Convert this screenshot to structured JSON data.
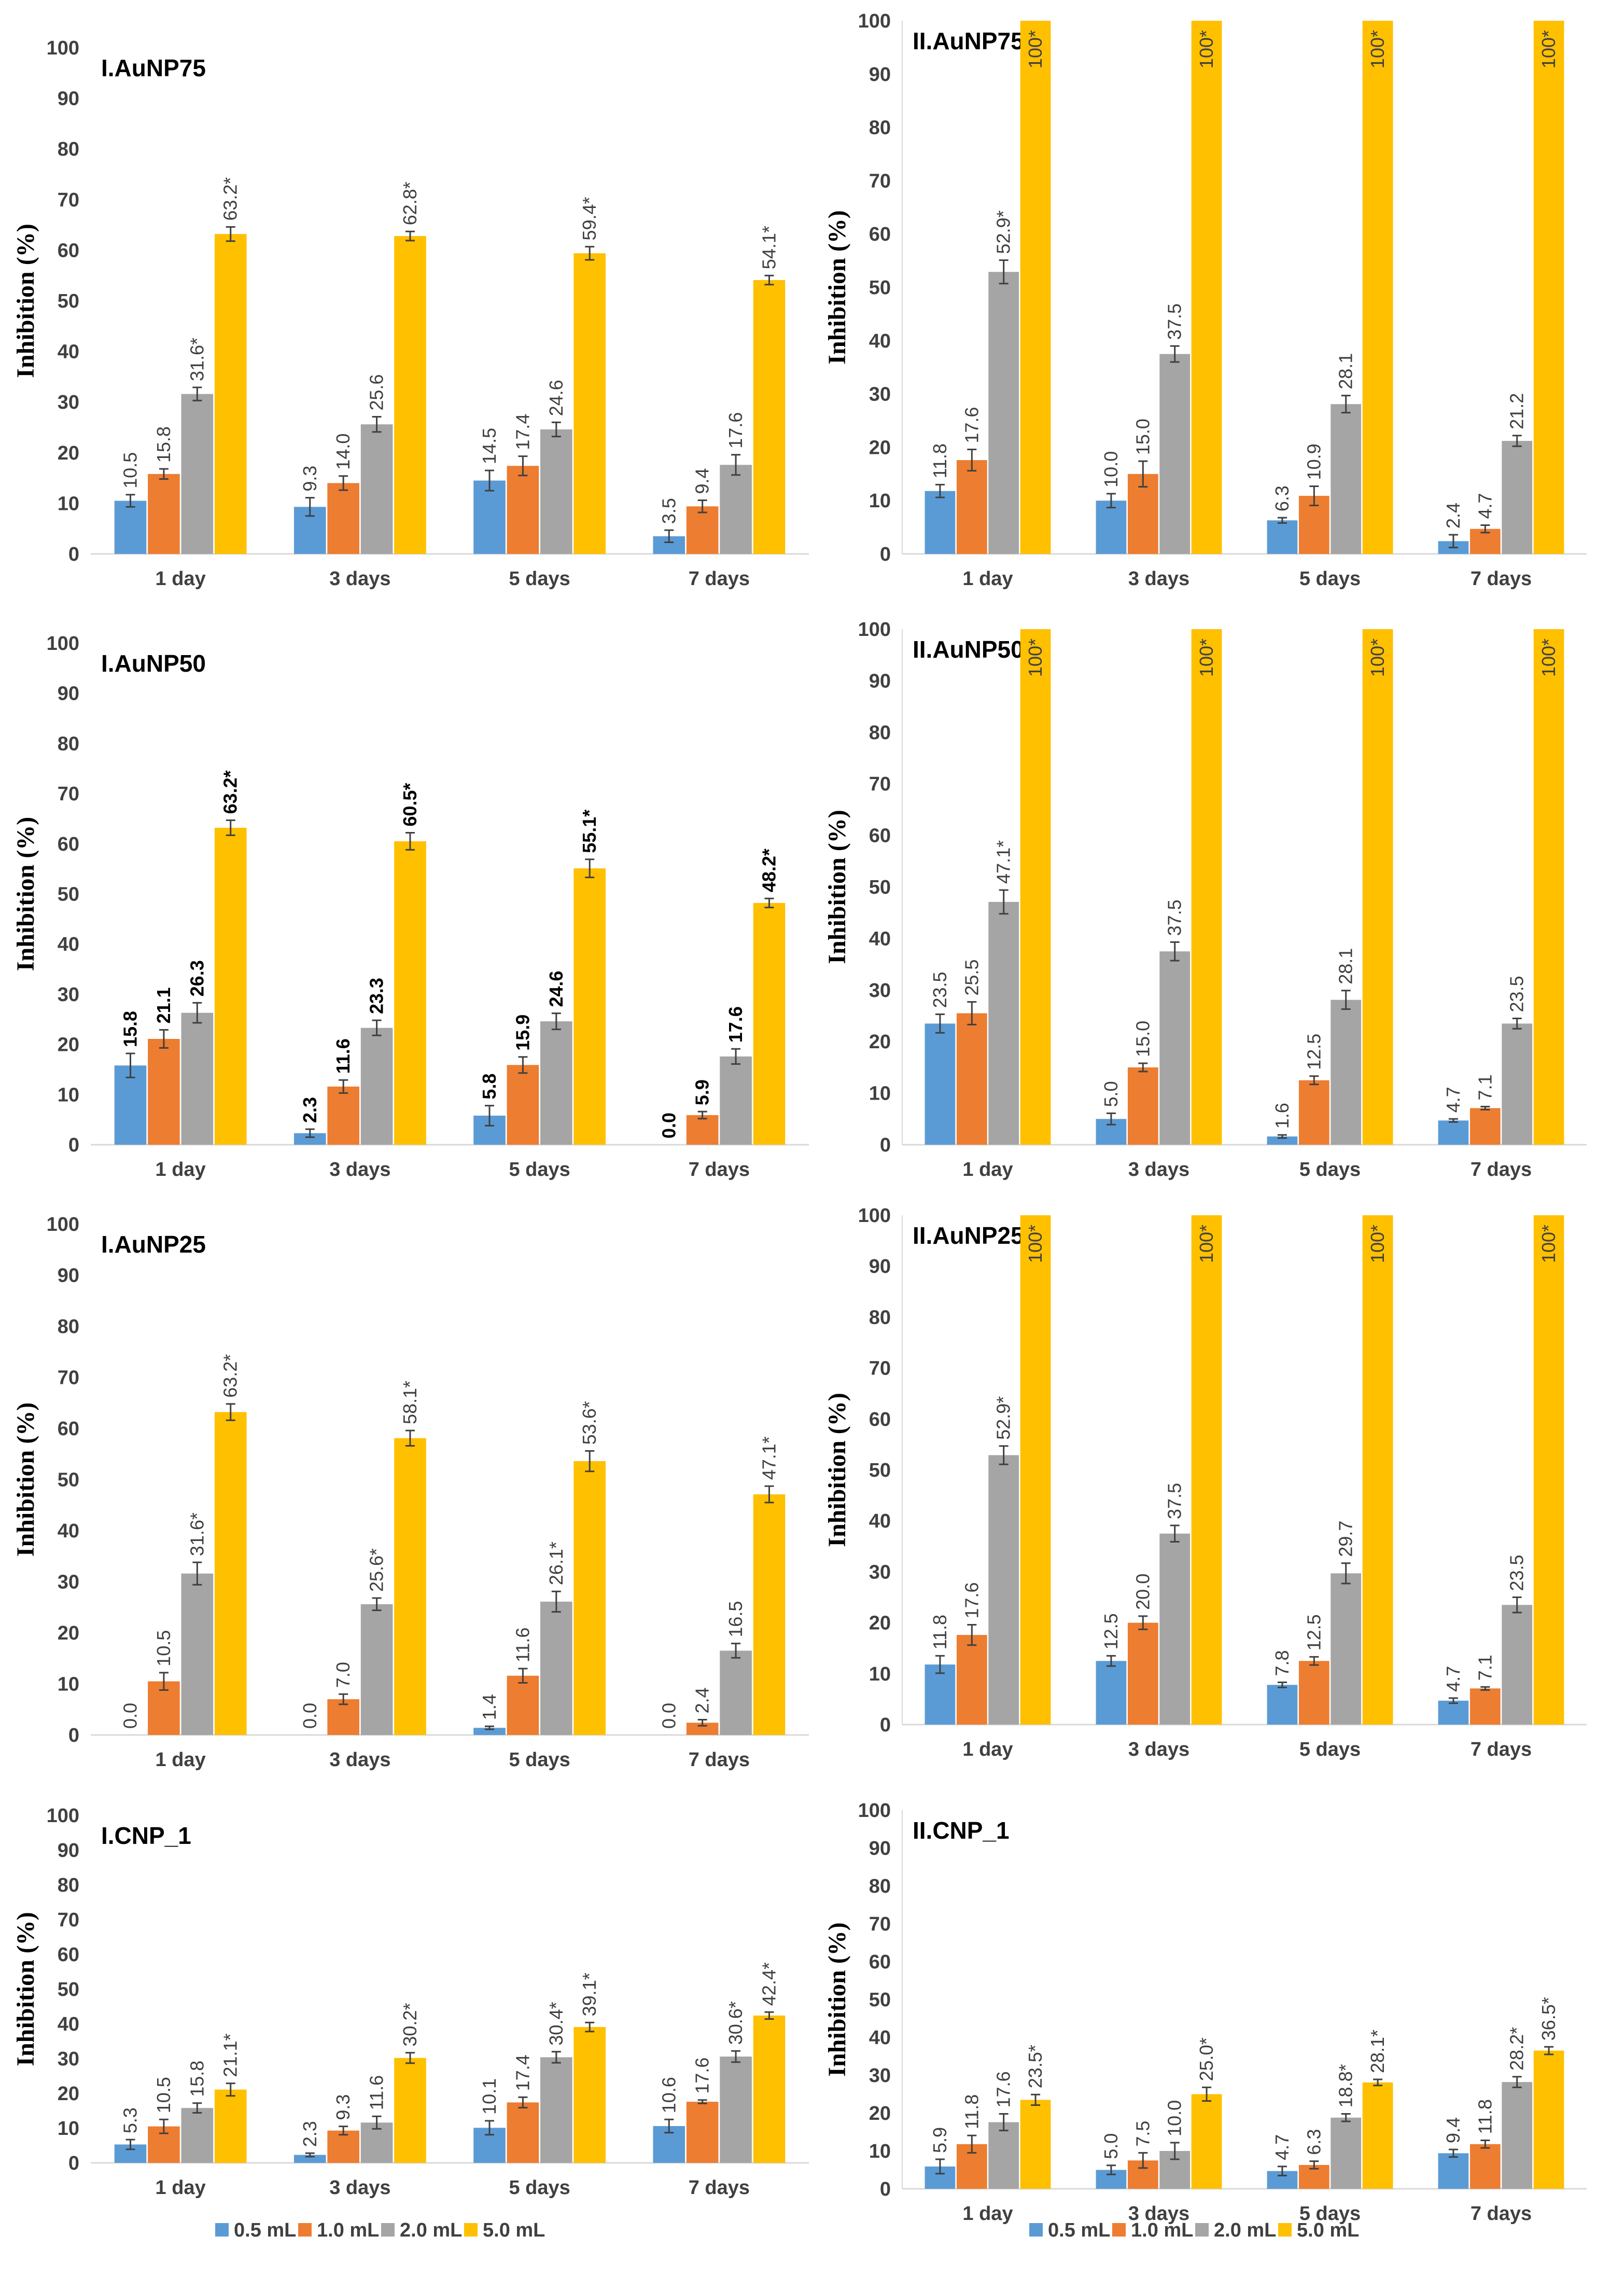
{
  "legend": [
    {
      "label": "0.5 mL",
      "color": "#5b9bd5"
    },
    {
      "label": "1.0 mL",
      "color": "#ed7d31"
    },
    {
      "label": "2.0 mL",
      "color": "#a5a5a5"
    },
    {
      "label": "5.0 mL",
      "color": "#ffc000"
    }
  ],
  "chart_data": [
    {
      "type": "bar",
      "title": "I.AuNP75",
      "ylabel": "Inhibition (%)",
      "ylim": [
        0,
        100
      ],
      "yticks": [
        0,
        10,
        20,
        30,
        40,
        50,
        60,
        70,
        80,
        90,
        100
      ],
      "categories": [
        "1 day",
        "3 days",
        "5 days",
        "7 days"
      ],
      "series": [
        {
          "name": "0.5 mL",
          "values": [
            10.5,
            9.3,
            14.5,
            3.5
          ],
          "labels": [
            "10.5",
            "9.3",
            "14.5",
            "3.5"
          ],
          "errors": [
            1.2,
            1.8,
            2.0,
            1.2
          ]
        },
        {
          "name": "1.0 mL",
          "values": [
            15.8,
            14.0,
            17.4,
            9.4
          ],
          "labels": [
            "15.8",
            "14.0",
            "17.4",
            "9.4"
          ],
          "errors": [
            1.0,
            1.4,
            1.9,
            1.2
          ]
        },
        {
          "name": "2.0 mL",
          "values": [
            31.6,
            25.6,
            24.6,
            17.6
          ],
          "labels": [
            "31.6*",
            "25.6",
            "24.6",
            "17.6"
          ],
          "errors": [
            1.3,
            1.5,
            1.4,
            2.0
          ]
        },
        {
          "name": "5.0 mL",
          "values": [
            63.2,
            62.8,
            59.4,
            54.1
          ],
          "labels": [
            "63.2*",
            "62.8*",
            "59.4*",
            "54.1*"
          ],
          "errors": [
            1.4,
            0.9,
            1.3,
            0.9
          ]
        }
      ]
    },
    {
      "type": "bar",
      "title": "II.AuNP75",
      "ylabel": "Inhibition (%)",
      "ylim": [
        0,
        100
      ],
      "yticks": [
        0,
        10,
        20,
        30,
        40,
        50,
        60,
        70,
        80,
        90,
        100
      ],
      "categories": [
        "1 day",
        "3 days",
        "5 days",
        "7 days"
      ],
      "series": [
        {
          "name": "0.5 mL",
          "values": [
            11.8,
            10.0,
            6.3,
            2.4
          ],
          "labels": [
            "11.8",
            "10.0",
            "6.3",
            "2.4"
          ],
          "errors": [
            1.2,
            1.3,
            0.5,
            1.2
          ]
        },
        {
          "name": "1.0 mL",
          "values": [
            17.6,
            15.0,
            10.9,
            4.7
          ],
          "labels": [
            "17.6",
            "15.0",
            "10.9",
            "4.7"
          ],
          "errors": [
            2.0,
            2.4,
            1.8,
            0.7
          ]
        },
        {
          "name": "2.0 mL",
          "values": [
            52.9,
            37.5,
            28.1,
            21.2
          ],
          "labels": [
            "52.9*",
            "37.5",
            "28.1",
            "21.2"
          ],
          "errors": [
            2.2,
            1.5,
            1.6,
            1.0
          ]
        },
        {
          "name": "5.0 mL",
          "values": [
            100,
            100,
            100,
            100
          ],
          "labels": [
            "100*",
            "100*",
            "100*",
            "100*"
          ],
          "errors": [
            0,
            0,
            0,
            0
          ]
        }
      ]
    },
    {
      "type": "bar",
      "title": "I.AuNP50",
      "ylabel": "Inhibition (%)",
      "ylim": [
        0,
        100
      ],
      "yticks": [
        0,
        10,
        20,
        30,
        40,
        50,
        60,
        70,
        80,
        90,
        100
      ],
      "categories": [
        "1 day",
        "3 days",
        "5 days",
        "7 days"
      ],
      "series": [
        {
          "name": "0.5 mL",
          "values": [
            15.8,
            2.3,
            5.8,
            0.0
          ],
          "labels": [
            "15.8",
            "2.3",
            "5.8",
            "0.0"
          ],
          "errors": [
            2.4,
            0.8,
            2.0,
            0
          ]
        },
        {
          "name": "1.0 mL",
          "values": [
            21.1,
            11.6,
            15.9,
            5.9
          ],
          "labels": [
            "21.1",
            "11.6",
            "15.9",
            "5.9"
          ],
          "errors": [
            1.8,
            1.3,
            1.6,
            0.7
          ]
        },
        {
          "name": "2.0 mL",
          "values": [
            26.3,
            23.3,
            24.6,
            17.6
          ],
          "labels": [
            "26.3",
            "23.3",
            "24.6",
            "17.6"
          ],
          "errors": [
            2.0,
            1.5,
            1.6,
            1.5
          ]
        },
        {
          "name": "5.0 mL",
          "values": [
            63.2,
            60.5,
            55.1,
            48.2
          ],
          "labels": [
            "63.2*",
            "60.5*",
            "55.1*",
            "48.2*"
          ],
          "errors": [
            1.5,
            1.7,
            1.8,
            0.9
          ]
        }
      ]
    },
    {
      "type": "bar",
      "title": "II.AuNP50",
      "ylabel": "Inhibition (%)",
      "ylim": [
        0,
        100
      ],
      "yticks": [
        0,
        10,
        20,
        30,
        40,
        50,
        60,
        70,
        80,
        90,
        100
      ],
      "categories": [
        "1 day",
        "3 days",
        "5 days",
        "7 days"
      ],
      "series": [
        {
          "name": "0.5 mL",
          "values": [
            23.5,
            5.0,
            1.6,
            4.7
          ],
          "labels": [
            "23.5",
            "5.0",
            "1.6",
            "4.7"
          ],
          "errors": [
            1.8,
            1.1,
            0.3,
            0.3
          ]
        },
        {
          "name": "1.0 mL",
          "values": [
            25.5,
            15.0,
            12.5,
            7.1
          ],
          "labels": [
            "25.5",
            "15.0",
            "12.5",
            "7.1"
          ],
          "errors": [
            2.2,
            0.8,
            0.8,
            0.3
          ]
        },
        {
          "name": "2.0 mL",
          "values": [
            47.1,
            37.5,
            28.1,
            23.5
          ],
          "labels": [
            "47.1*",
            "37.5",
            "28.1",
            "23.5"
          ],
          "errors": [
            2.3,
            1.8,
            1.8,
            1.0
          ]
        },
        {
          "name": "5.0 mL",
          "values": [
            100,
            100,
            100,
            100
          ],
          "labels": [
            "100*",
            "100*",
            "100*",
            "100*"
          ],
          "errors": [
            0,
            0,
            0,
            0
          ]
        }
      ]
    },
    {
      "type": "bar",
      "title": "I.AuNP25",
      "ylabel": "Inhibition (%)",
      "ylim": [
        0,
        100
      ],
      "yticks": [
        0,
        10,
        20,
        30,
        40,
        50,
        60,
        70,
        80,
        90,
        100
      ],
      "categories": [
        "1 day",
        "3 days",
        "5 days",
        "7 days"
      ],
      "series": [
        {
          "name": "0.5 mL",
          "values": [
            0.0,
            0.0,
            1.4,
            0.0
          ],
          "labels": [
            "0.0",
            "0.0",
            "1.4",
            "0.0"
          ],
          "errors": [
            0,
            0,
            0.3,
            0
          ]
        },
        {
          "name": "1.0 mL",
          "values": [
            10.5,
            7.0,
            11.6,
            2.4
          ],
          "labels": [
            "10.5",
            "7.0",
            "11.6",
            "2.4"
          ],
          "errors": [
            1.7,
            1.0,
            1.4,
            0.6
          ]
        },
        {
          "name": "2.0 mL",
          "values": [
            31.6,
            25.6,
            26.1,
            16.5
          ],
          "labels": [
            "31.6*",
            "25.6*",
            "26.1*",
            "16.5"
          ],
          "errors": [
            2.2,
            1.2,
            2.0,
            1.4
          ]
        },
        {
          "name": "5.0 mL",
          "values": [
            63.2,
            58.1,
            53.6,
            47.1
          ],
          "labels": [
            "63.2*",
            "58.1*",
            "53.6*",
            "47.1*"
          ],
          "errors": [
            1.6,
            1.5,
            2.0,
            1.6
          ]
        }
      ]
    },
    {
      "type": "bar",
      "title": "II.AuNP25",
      "ylabel": "Inhibition (%)",
      "ylim": [
        0,
        100
      ],
      "yticks": [
        0,
        10,
        20,
        30,
        40,
        50,
        60,
        70,
        80,
        90,
        100
      ],
      "categories": [
        "1 day",
        "3 days",
        "5 days",
        "7 days"
      ],
      "series": [
        {
          "name": "0.5 mL",
          "values": [
            11.8,
            12.5,
            7.8,
            4.7
          ],
          "labels": [
            "11.8",
            "12.5",
            "7.8",
            "4.7"
          ],
          "errors": [
            1.7,
            1.0,
            0.5,
            0.5
          ]
        },
        {
          "name": "1.0 mL",
          "values": [
            17.6,
            20.0,
            12.5,
            7.1
          ],
          "labels": [
            "17.6",
            "20.0",
            "12.5",
            "7.1"
          ],
          "errors": [
            2.0,
            1.3,
            0.8,
            0.3
          ]
        },
        {
          "name": "2.0 mL",
          "values": [
            52.9,
            37.5,
            29.7,
            23.5
          ],
          "labels": [
            "52.9*",
            "37.5",
            "29.7",
            "23.5"
          ],
          "errors": [
            1.8,
            1.6,
            2.0,
            1.5
          ]
        },
        {
          "name": "5.0 mL",
          "values": [
            100,
            100,
            100,
            100
          ],
          "labels": [
            "100*",
            "100*",
            "100*",
            "100*"
          ],
          "errors": [
            0,
            0,
            0,
            0
          ]
        }
      ]
    },
    {
      "type": "bar",
      "title": "I.CNP_1",
      "ylabel": "Inhibition (%)",
      "ylim": [
        0,
        100
      ],
      "yticks": [
        0,
        10,
        20,
        30,
        40,
        50,
        60,
        70,
        80,
        90,
        100
      ],
      "categories": [
        "1 day",
        "3 days",
        "5 days",
        "7 days"
      ],
      "series": [
        {
          "name": "0.5 mL",
          "values": [
            5.3,
            2.3,
            10.1,
            10.6
          ],
          "labels": [
            "5.3",
            "2.3",
            "10.1",
            "10.6"
          ],
          "errors": [
            1.4,
            0.5,
            2.0,
            1.9
          ]
        },
        {
          "name": "1.0 mL",
          "values": [
            10.5,
            9.3,
            17.4,
            17.6
          ],
          "labels": [
            "10.5",
            "9.3",
            "17.4",
            "17.6"
          ],
          "errors": [
            2.0,
            1.2,
            1.5,
            0.5
          ]
        },
        {
          "name": "2.0 mL",
          "values": [
            15.8,
            11.6,
            30.4,
            30.6
          ],
          "labels": [
            "15.8",
            "11.6",
            "30.4*",
            "30.6*"
          ],
          "errors": [
            1.4,
            1.8,
            1.6,
            1.6
          ]
        },
        {
          "name": "5.0 mL",
          "values": [
            21.1,
            30.2,
            39.1,
            42.4
          ],
          "labels": [
            "21.1*",
            "30.2*",
            "39.1*",
            "42.4*"
          ],
          "errors": [
            1.8,
            1.5,
            1.3,
            1.0
          ]
        }
      ]
    },
    {
      "type": "bar",
      "title": "II.CNP_1",
      "ylabel": "Inhibition (%)",
      "ylim": [
        0,
        100
      ],
      "yticks": [
        0,
        10,
        20,
        30,
        40,
        50,
        60,
        70,
        80,
        90,
        100
      ],
      "categories": [
        "1 day",
        "3 days",
        "5 days",
        "7 days"
      ],
      "series": [
        {
          "name": "0.5 mL",
          "values": [
            5.9,
            5.0,
            4.7,
            9.4
          ],
          "labels": [
            "5.9",
            "5.0",
            "4.7",
            "9.4"
          ],
          "errors": [
            1.9,
            1.2,
            1.2,
            1.0
          ]
        },
        {
          "name": "1.0 mL",
          "values": [
            11.8,
            7.5,
            6.3,
            11.8
          ],
          "labels": [
            "11.8",
            "7.5",
            "6.3",
            "11.8"
          ],
          "errors": [
            2.3,
            2.0,
            1.0,
            1.0
          ]
        },
        {
          "name": "2.0 mL",
          "values": [
            17.6,
            10.0,
            18.8,
            28.2
          ],
          "labels": [
            "17.6",
            "10.0",
            "18.8*",
            "28.2*"
          ],
          "errors": [
            2.2,
            2.2,
            1.0,
            1.4
          ]
        },
        {
          "name": "5.0 mL",
          "values": [
            23.5,
            25.0,
            28.1,
            36.5
          ],
          "labels": [
            "23.5*",
            "25.0*",
            "28.1*",
            "36.5*"
          ],
          "errors": [
            1.4,
            1.8,
            0.8,
            1.0
          ]
        }
      ]
    }
  ]
}
